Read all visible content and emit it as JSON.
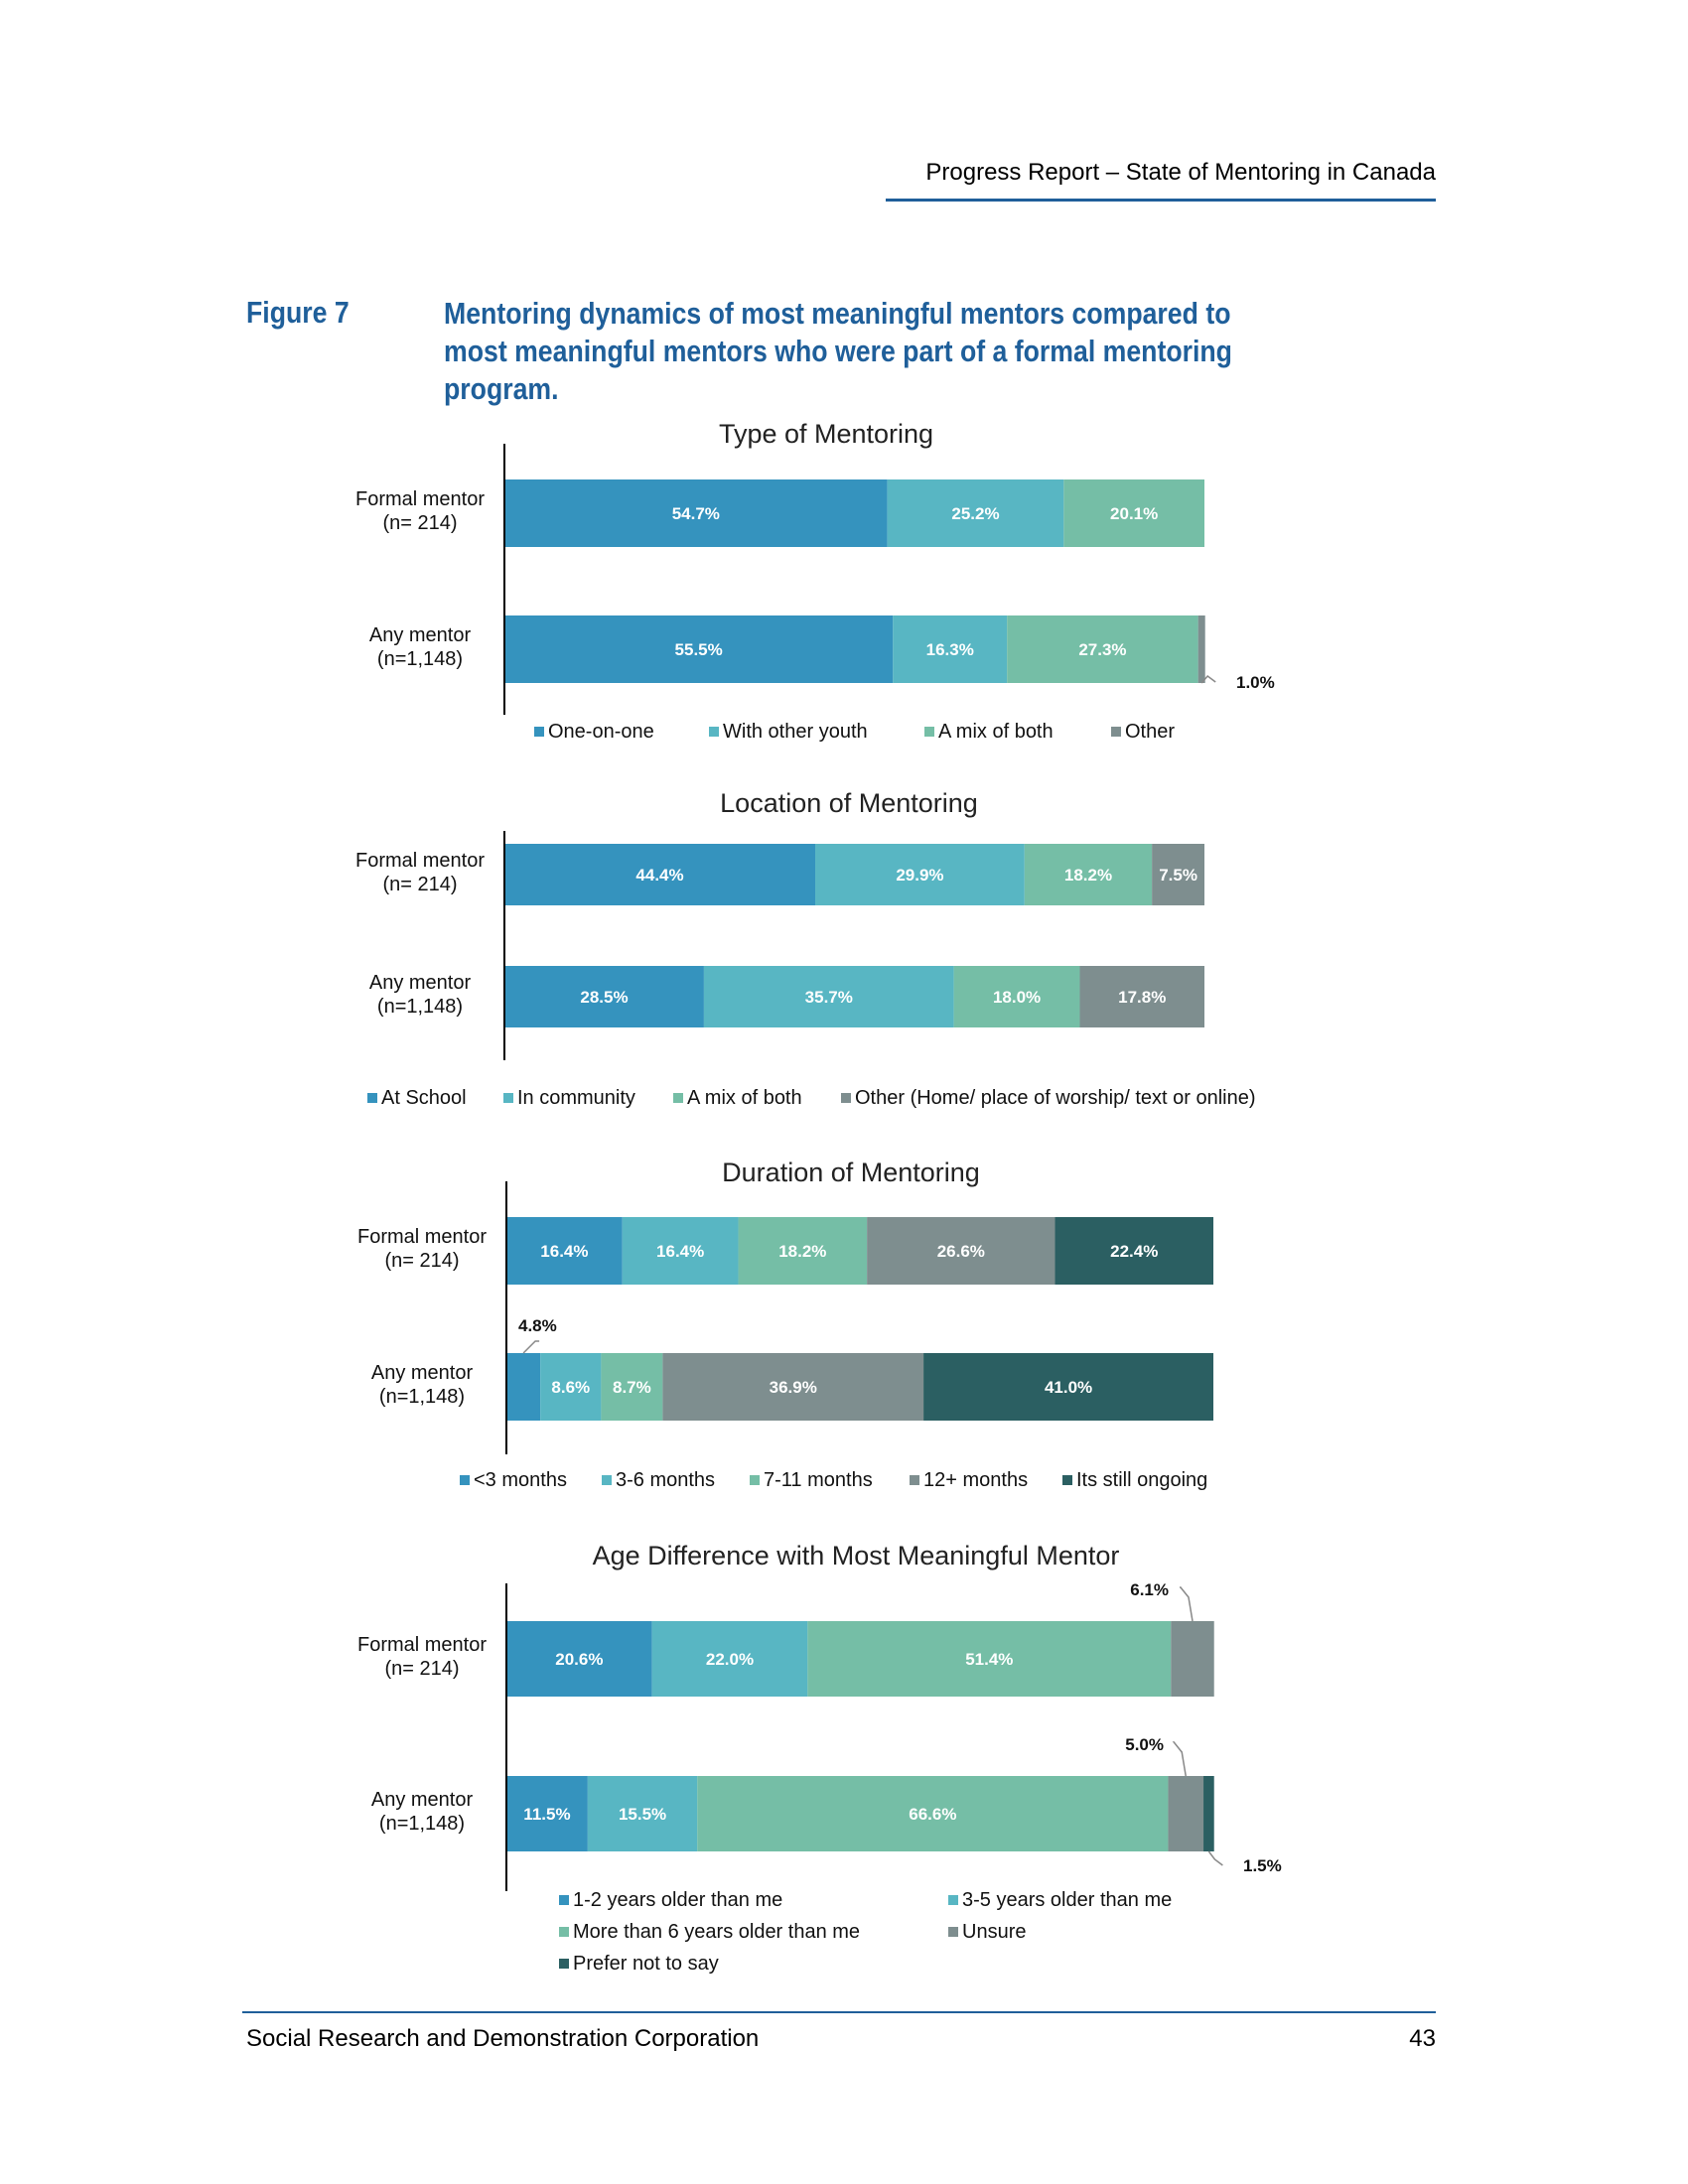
{
  "header": {
    "title": "Progress Report – State of Mentoring in Canada"
  },
  "figure": {
    "label": "Figure 7",
    "caption": "Mentoring dynamics of most meaningful mentors compared to most meaningful mentors who were part of a formal mentoring program."
  },
  "footer": {
    "org": "Social Research and Demonstration Corporation",
    "page": "43"
  },
  "colors": {
    "blue": "#3593be",
    "teal": "#58b6c3",
    "green": "#75bea6",
    "gray": "#7e8e8f",
    "darkteal": "#2b5f62",
    "axis": "#000000"
  },
  "chart_data": [
    {
      "type": "bar",
      "orientation": "horizontal",
      "stacked": true,
      "title": "Type of Mentoring",
      "categories": [
        "Formal mentor\n(n= 214)",
        "Any mentor\n(n=1,148)"
      ],
      "series": [
        {
          "name": "One-on-one",
          "color": "#3593be",
          "values": [
            54.7,
            55.5
          ]
        },
        {
          "name": "With other youth",
          "color": "#58b6c3",
          "values": [
            25.2,
            16.3
          ]
        },
        {
          "name": "A mix of both",
          "color": "#75bea6",
          "values": [
            20.1,
            27.3
          ]
        },
        {
          "name": "Other",
          "color": "#7e8e8f",
          "values": [
            0,
            1.0
          ]
        }
      ],
      "unit": "%",
      "legend": "bottom"
    },
    {
      "type": "bar",
      "orientation": "horizontal",
      "stacked": true,
      "title": "Location of Mentoring",
      "categories": [
        "Formal mentor\n(n= 214)",
        "Any mentor\n(n=1,148)"
      ],
      "series": [
        {
          "name": "At School",
          "color": "#3593be",
          "values": [
            44.4,
            28.5
          ]
        },
        {
          "name": "In community",
          "color": "#58b6c3",
          "values": [
            29.9,
            35.7
          ]
        },
        {
          "name": "A mix of both",
          "color": "#75bea6",
          "values": [
            18.2,
            18.0
          ]
        },
        {
          "name": "Other (Home/ place of worship/ text or online)",
          "color": "#7e8e8f",
          "values": [
            7.5,
            17.8
          ]
        }
      ],
      "unit": "%",
      "legend": "bottom"
    },
    {
      "type": "bar",
      "orientation": "horizontal",
      "stacked": true,
      "title": "Duration of Mentoring",
      "categories": [
        "Formal mentor\n(n= 214)",
        "Any mentor\n(n=1,148)"
      ],
      "series": [
        {
          "name": "<3 months",
          "color": "#3593be",
          "values": [
            16.4,
            4.8
          ]
        },
        {
          "name": "3-6 months",
          "color": "#58b6c3",
          "values": [
            16.4,
            8.6
          ]
        },
        {
          "name": "7-11 months",
          "color": "#75bea6",
          "values": [
            18.2,
            8.7
          ]
        },
        {
          "name": "12+ months",
          "color": "#7e8e8f",
          "values": [
            26.6,
            36.9
          ]
        },
        {
          "name": "Its still ongoing",
          "color": "#2b5f62",
          "values": [
            22.4,
            41.0
          ]
        }
      ],
      "unit": "%",
      "legend": "bottom"
    },
    {
      "type": "bar",
      "orientation": "horizontal",
      "stacked": true,
      "title": "Age Difference with Most Meaningful Mentor",
      "categories": [
        "Formal mentor\n(n= 214)",
        "Any mentor\n(n=1,148)"
      ],
      "series": [
        {
          "name": "1-2 years older than me",
          "color": "#3593be",
          "values": [
            20.6,
            11.5
          ]
        },
        {
          "name": "3-5 years older than me",
          "color": "#58b6c3",
          "values": [
            22.0,
            15.5
          ]
        },
        {
          "name": "More than 6 years older than me",
          "color": "#75bea6",
          "values": [
            51.4,
            66.6
          ]
        },
        {
          "name": "Unsure",
          "color": "#7e8e8f",
          "values": [
            6.1,
            5.0
          ]
        },
        {
          "name": "Prefer not to say",
          "color": "#2b5f62",
          "values": [
            0,
            1.5
          ]
        }
      ],
      "unit": "%",
      "legend": "bottom"
    }
  ]
}
